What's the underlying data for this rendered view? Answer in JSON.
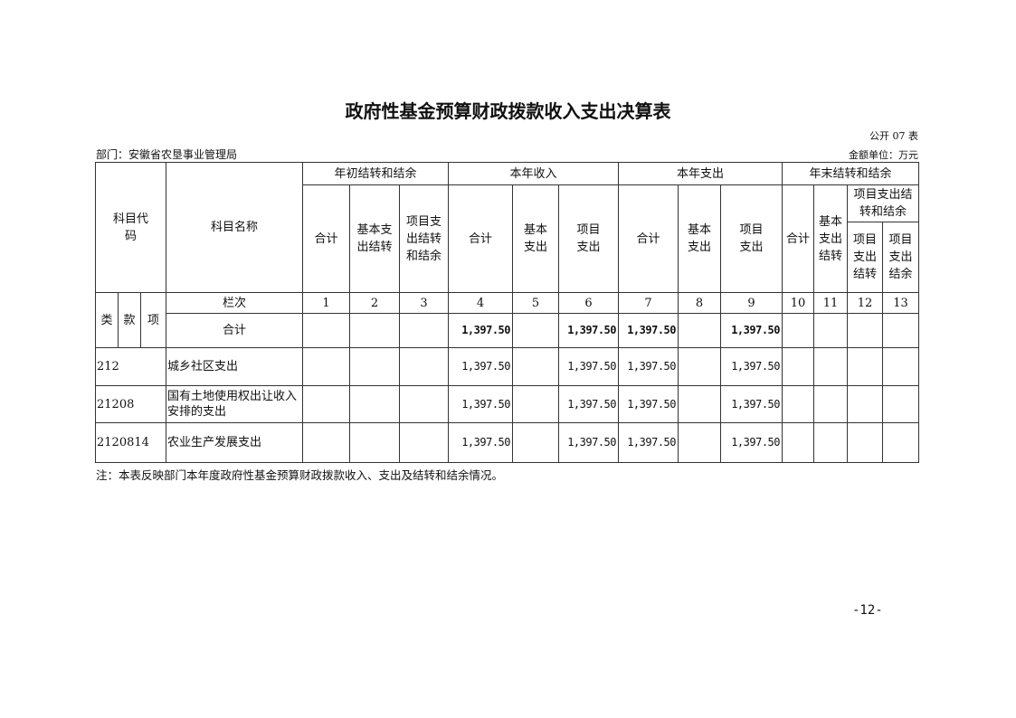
{
  "title": "政府性基金预算财政拨款收入支出决算表",
  "form_no": "公开 07 表",
  "department": "部门：安徽省农垦事业管理局",
  "unit": "金额单位：万元",
  "header": {
    "code": "科目代码",
    "name": "科目名称",
    "groups": [
      "年初结转和结余",
      "本年收入",
      "本年支出",
      "年末结转和结余"
    ],
    "g1": [
      "合计",
      "基本支出结转",
      "项目支出结转和结余"
    ],
    "g2": [
      "合计",
      "基本支出",
      "项目支出"
    ],
    "g3": [
      "合计",
      "基本支出",
      "项目支出"
    ],
    "g4": [
      "合计",
      "基本支出结转",
      "项目支出结转和结余"
    ],
    "g4_sub": [
      "项目支出结转",
      "项目支出结余"
    ],
    "lei": "类",
    "kuan": "款",
    "xiang": "项",
    "lanci": "栏次",
    "col_nums": [
      "1",
      "2",
      "3",
      "4",
      "5",
      "6",
      "7",
      "8",
      "9",
      "10",
      "11",
      "12",
      "13"
    ]
  },
  "total": {
    "label": "合计",
    "values": [
      "",
      "",
      "",
      "1,397.50",
      "",
      "1,397.50",
      "1,397.50",
      "",
      "1,397.50",
      "",
      "",
      "",
      ""
    ]
  },
  "rows": [
    {
      "code": "212",
      "name": "城乡社区支出",
      "values": [
        "",
        "",
        "",
        "1,397.50",
        "",
        "1,397.50",
        "1,397.50",
        "",
        "1,397.50",
        "",
        "",
        "",
        ""
      ]
    },
    {
      "code": "21208",
      "name": "国有土地使用权出让收入安排的支出",
      "values": [
        "",
        "",
        "",
        "1,397.50",
        "",
        "1,397.50",
        "1,397.50",
        "",
        "1,397.50",
        "",
        "",
        "",
        ""
      ]
    },
    {
      "code": "2120814",
      "name": "农业生产发展支出",
      "values": [
        "",
        "",
        "",
        "1,397.50",
        "",
        "1,397.50",
        "1,397.50",
        "",
        "1,397.50",
        "",
        "",
        "",
        ""
      ]
    }
  ],
  "note": "注：本表反映部门本年度政府性基金预算财政拨款收入、支出及结转和结余情况。",
  "page_number": "-12-"
}
